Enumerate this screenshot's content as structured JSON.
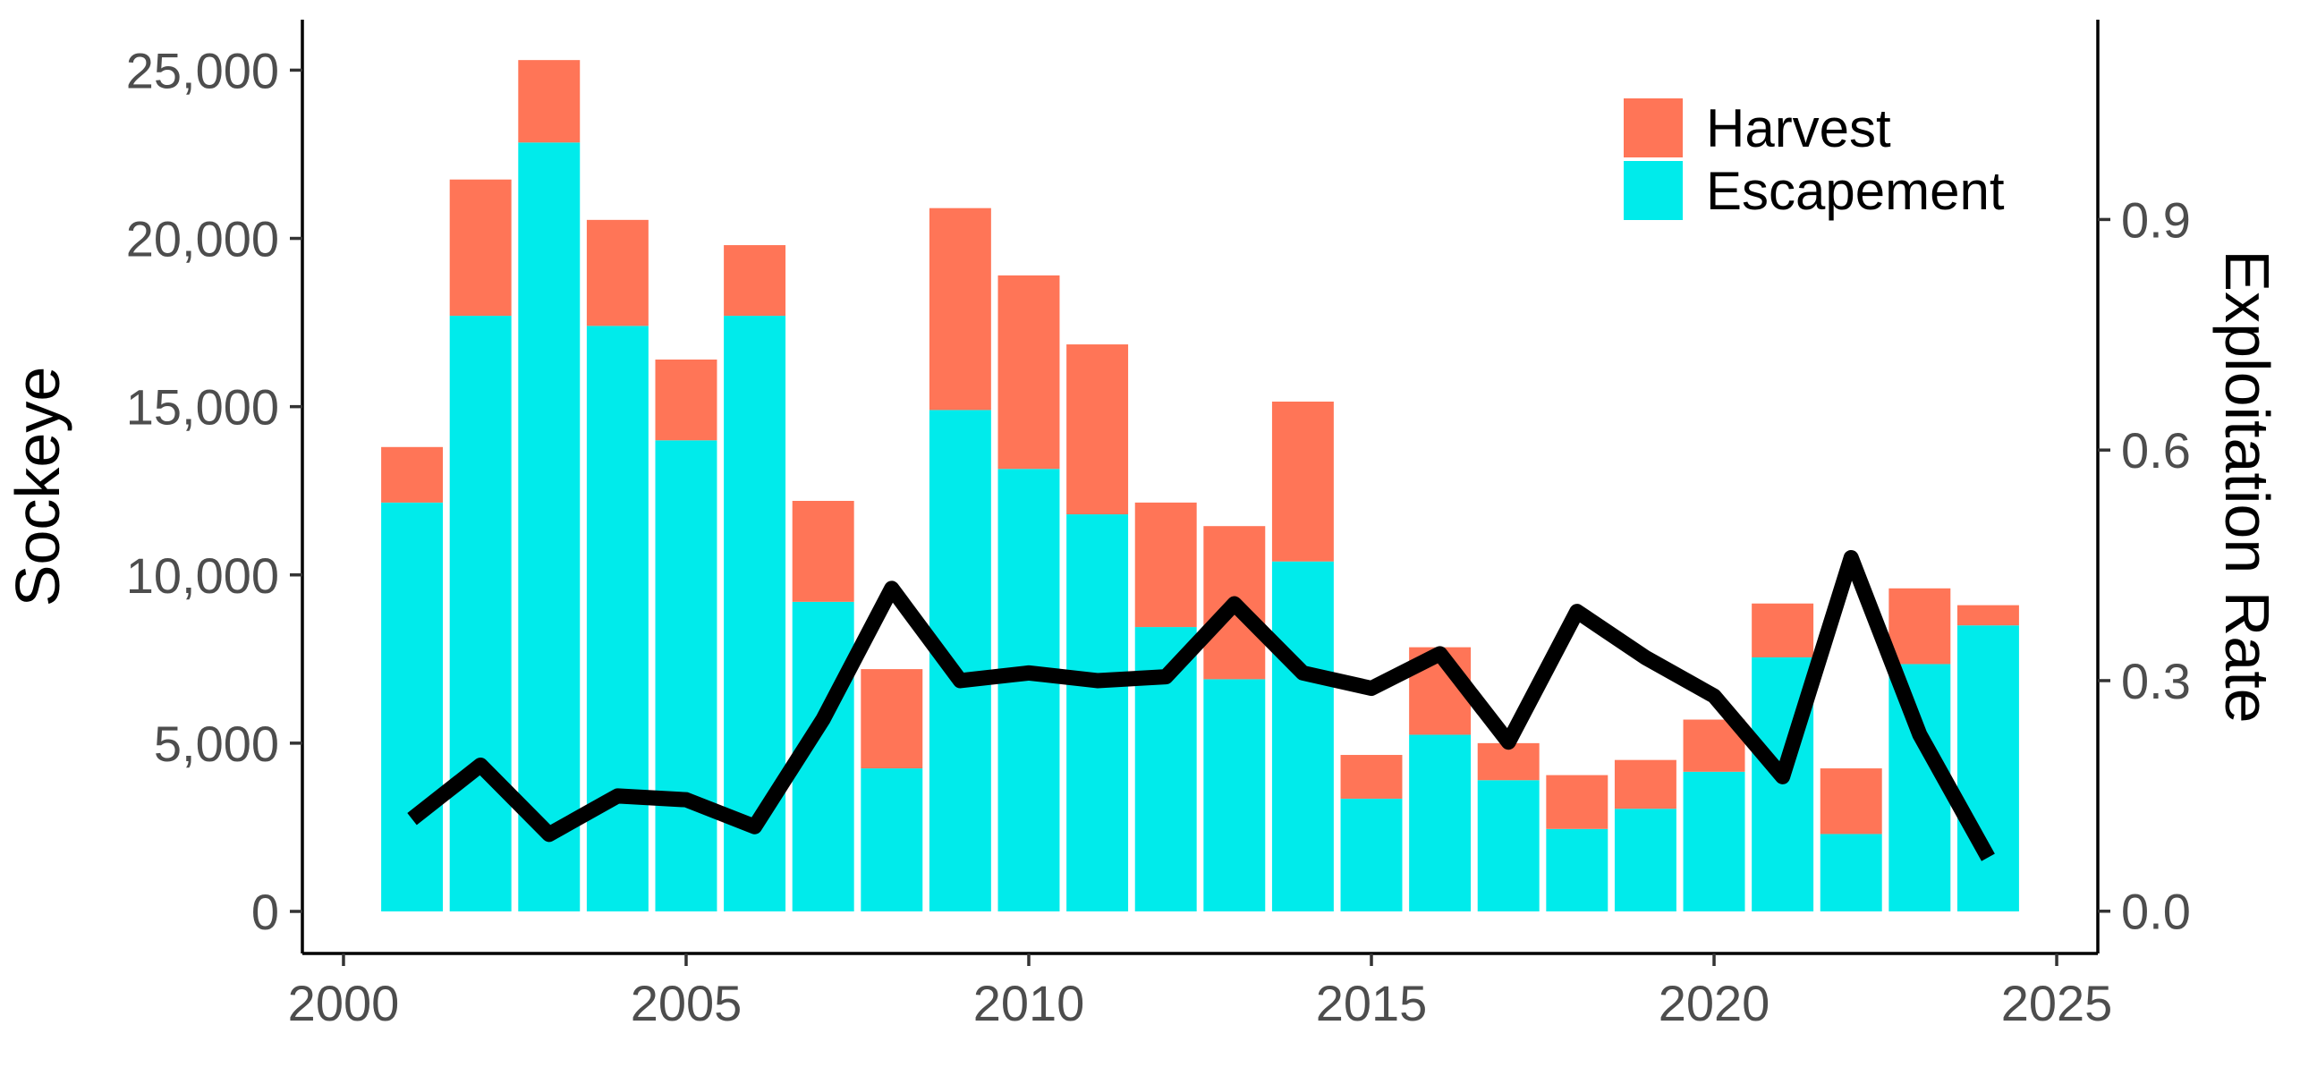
{
  "chart_data": {
    "type": "bar",
    "stacked": true,
    "x": [
      2001,
      2002,
      2003,
      2004,
      2005,
      2006,
      2007,
      2008,
      2009,
      2010,
      2011,
      2012,
      2013,
      2014,
      2015,
      2016,
      2017,
      2018,
      2019,
      2020,
      2021,
      2022,
      2023,
      2024
    ],
    "series": [
      {
        "name": "Escapement",
        "color": "#00EBEB",
        "values": [
          12150,
          17700,
          22850,
          17400,
          14000,
          17700,
          9200,
          4250,
          14900,
          13150,
          11800,
          8450,
          6900,
          10400,
          3350,
          5250,
          3900,
          2450,
          3050,
          4150,
          7550,
          2300,
          7350,
          8500
        ]
      },
      {
        "name": "Harvest",
        "color": "#FF7557",
        "values": [
          1650,
          4050,
          2450,
          3150,
          2400,
          2100,
          3000,
          2950,
          6000,
          5750,
          5050,
          3700,
          4550,
          4750,
          1300,
          2600,
          1100,
          1600,
          1450,
          1550,
          1600,
          1950,
          2250,
          600
        ]
      }
    ],
    "line": {
      "name": "Exploitation Rate",
      "color": "#000000",
      "axis": "right",
      "values": [
        0.12,
        0.19,
        0.1,
        0.15,
        0.145,
        0.11,
        0.25,
        0.42,
        0.3,
        0.31,
        0.3,
        0.305,
        0.4,
        0.31,
        0.29,
        0.335,
        0.22,
        0.39,
        0.33,
        0.28,
        0.175,
        0.46,
        0.23,
        0.07
      ]
    },
    "xlabel": "",
    "ylabel": "Sockeye",
    "y2label": "Exploitation Rate",
    "xlim": [
      1999.4,
      2025.6
    ],
    "ylim": [
      -1250,
      26500
    ],
    "y2lim": [
      -0.055,
      1.16
    ],
    "xticks": [
      2000,
      2005,
      2010,
      2015,
      2020,
      2025
    ],
    "xtick_labels": [
      "2000",
      "2005",
      "2010",
      "2015",
      "2020",
      "2025"
    ],
    "yticks": [
      0,
      5000,
      10000,
      15000,
      20000,
      25000
    ],
    "ytick_labels": [
      "0",
      "5,000",
      "10,000",
      "15,000",
      "20,000",
      "25,000"
    ],
    "y2ticks": [
      0.0,
      0.3,
      0.6,
      0.9
    ],
    "y2tick_labels": [
      "0.0",
      "0.3",
      "0.6",
      "0.9"
    ],
    "legend": {
      "position": "top-right",
      "entries": [
        {
          "label": "Harvest",
          "color": "#FF7557"
        },
        {
          "label": "Escapement",
          "color": "#00EBEB"
        }
      ]
    },
    "grid": false
  }
}
